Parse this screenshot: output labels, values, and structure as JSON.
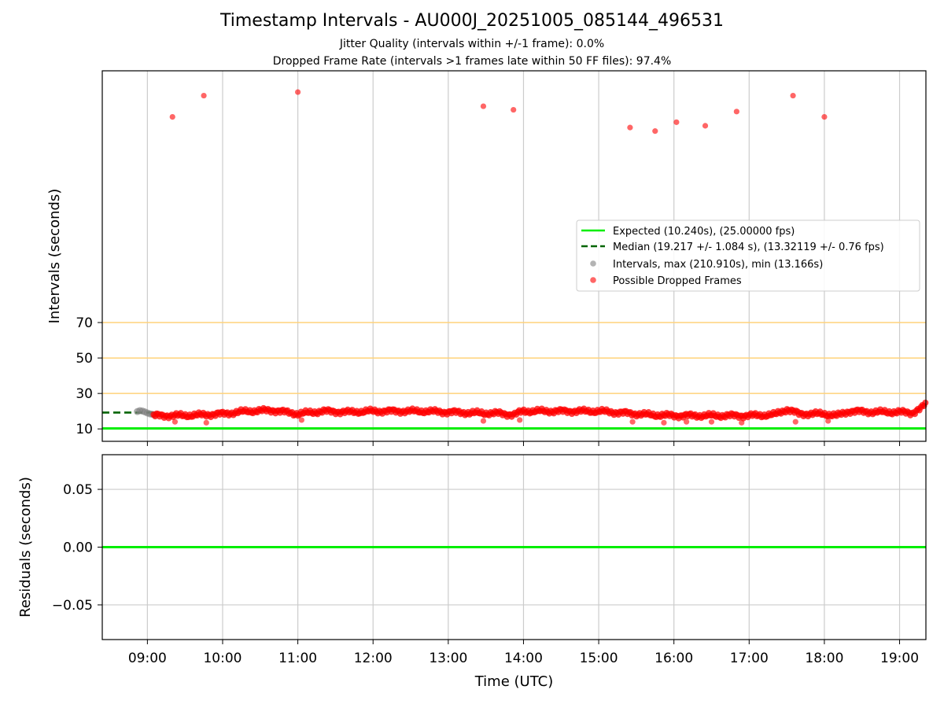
{
  "title": "Timestamp Intervals - AU000J_20251005_085144_496531",
  "subtitle_lines": [
    "Jitter Quality (intervals within +/-1 frame): 0.0%",
    "Dropped Frame Rate (intervals >1 frames late within 50 FF files): 97.4%"
  ],
  "colors": {
    "expected": "#00ee00",
    "median": "#006400",
    "intervals": "#808080",
    "dropped": "#ff0000",
    "threshold_lines": "#ffd27a",
    "grid": "#cccccc"
  },
  "chart_data": [
    {
      "type": "scatter",
      "panel": "top",
      "xlabel": "",
      "ylabel": "Intervals (seconds)",
      "xlim": [
        "08:24",
        "19:21"
      ],
      "ylim": [
        3,
        212
      ],
      "x_ticks": [
        "09:00",
        "10:00",
        "11:00",
        "12:00",
        "13:00",
        "14:00",
        "15:00",
        "16:00",
        "17:00",
        "18:00",
        "19:00"
      ],
      "y_ticks": [
        10,
        30,
        50,
        70
      ],
      "grid": "vertical",
      "threshold_lines": [
        30,
        50,
        70
      ],
      "legend_position": "center-right",
      "legend": [
        "Expected (10.240s), (25.00000 fps)",
        "Median (19.217 +/- 1.084 s), (13.32119 +/- 0.76 fps)",
        "Intervals, max (210.910s), min (13.166s)",
        "Possible Dropped Frames"
      ],
      "expected_value": 10.24,
      "median_value": 19.217,
      "median_x_range": [
        "08:24",
        "09:05"
      ],
      "series": [
        {
          "name": "Intervals, max (210.910s), min (13.166s)",
          "style": "gray-points",
          "x": [
            "08:52",
            "08:54",
            "08:56",
            "08:58",
            "09:00",
            "09:02",
            "09:04",
            "09:06"
          ],
          "y": [
            19.8,
            20.3,
            20.1,
            19.6,
            19.0,
            18.5,
            18.2,
            18.0
          ]
        },
        {
          "name": "Possible Dropped Frames",
          "style": "band",
          "x": [
            "09:05",
            "09:20",
            "09:40",
            "10:00",
            "10:20",
            "10:40",
            "11:00",
            "11:20",
            "11:40",
            "12:00",
            "12:20",
            "12:40",
            "13:00",
            "13:20",
            "13:40",
            "13:52",
            "14:00",
            "14:20",
            "14:40",
            "15:00",
            "15:20",
            "15:40",
            "16:00",
            "16:20",
            "16:40",
            "17:00",
            "17:20",
            "17:30",
            "17:40",
            "18:00",
            "18:10",
            "18:20",
            "18:40",
            "19:00",
            "19:10",
            "19:18",
            "19:21"
          ],
          "y": [
            17.5,
            17.5,
            17.8,
            18.5,
            20.0,
            20.5,
            18.5,
            20.0,
            19.5,
            20.0,
            20.0,
            20.0,
            19.5,
            19.0,
            18.8,
            18.0,
            20.0,
            20.0,
            20.0,
            20.0,
            19.0,
            18.0,
            17.5,
            17.5,
            17.5,
            17.5,
            18.0,
            21.0,
            18.5,
            18.5,
            17.5,
            20.0,
            19.5,
            19.5,
            19.0,
            22.0,
            24.5
          ]
        },
        {
          "name": "Possible Dropped Frames",
          "style": "outliers",
          "x": [
            "09:20",
            "09:45",
            "11:00",
            "13:28",
            "13:52",
            "15:25",
            "15:45",
            "16:02",
            "16:25",
            "16:50",
            "17:35",
            "18:00",
            "09:22",
            "09:47",
            "11:03",
            "13:28",
            "13:57",
            "15:27",
            "15:52",
            "16:10",
            "16:30",
            "16:54",
            "17:37",
            "18:03"
          ],
          "y": [
            186,
            198,
            200,
            192,
            190,
            180,
            178,
            183,
            181,
            189,
            198,
            186,
            14.0,
            13.5,
            15.0,
            14.5,
            15.0,
            14.0,
            13.5,
            14.0,
            14.0,
            13.5,
            14.0,
            14.5
          ]
        }
      ]
    },
    {
      "type": "line",
      "panel": "bottom",
      "xlabel": "Time (UTC)",
      "ylabel": "Residuals (seconds)",
      "xlim": [
        "08:24",
        "19:21"
      ],
      "ylim": [
        -0.08,
        0.08
      ],
      "x_ticks": [
        "09:00",
        "10:00",
        "11:00",
        "12:00",
        "13:00",
        "14:00",
        "15:00",
        "16:00",
        "17:00",
        "18:00",
        "19:00"
      ],
      "y_ticks": [
        "0.05",
        "0.00",
        "−0.05"
      ],
      "y_tick_values": [
        0.05,
        0.0,
        -0.05
      ],
      "grid": "both",
      "series": [
        {
          "name": "",
          "x": [
            "08:24",
            "19:21"
          ],
          "y": [
            0.0,
            0.0
          ]
        }
      ]
    }
  ]
}
